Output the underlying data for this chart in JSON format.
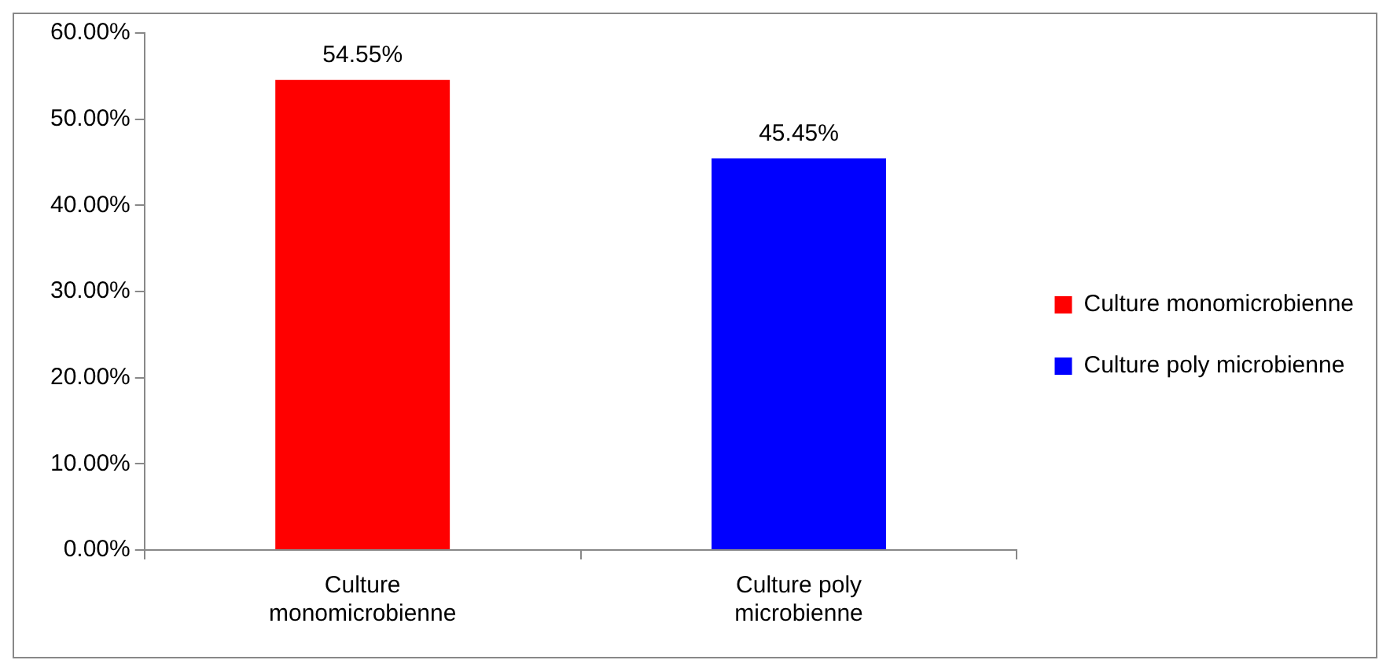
{
  "chart_data": {
    "type": "bar",
    "categories": [
      "Culture monomicrobienne",
      "Culture poly microbienne"
    ],
    "series": [
      {
        "name": "Culture monomicrobienne",
        "color": "#ff0000",
        "values": [
          54.55,
          null
        ],
        "value_labels": [
          "54.55%",
          null
        ]
      },
      {
        "name": "Culture poly microbienne",
        "color": "#0000ff",
        "values": [
          null,
          45.45
        ],
        "value_labels": [
          null,
          "45.45%"
        ]
      }
    ],
    "ylim": [
      0,
      60
    ],
    "yticks": [
      {
        "value": 0,
        "label": "0.00%"
      },
      {
        "value": 10,
        "label": "10.00%"
      },
      {
        "value": 20,
        "label": "20.00%"
      },
      {
        "value": 30,
        "label": "30.00%"
      },
      {
        "value": 40,
        "label": "40.00%"
      },
      {
        "value": 50,
        "label": "50.00%"
      },
      {
        "value": 60,
        "label": "60.00%"
      }
    ],
    "grid": false,
    "legend": "right"
  }
}
